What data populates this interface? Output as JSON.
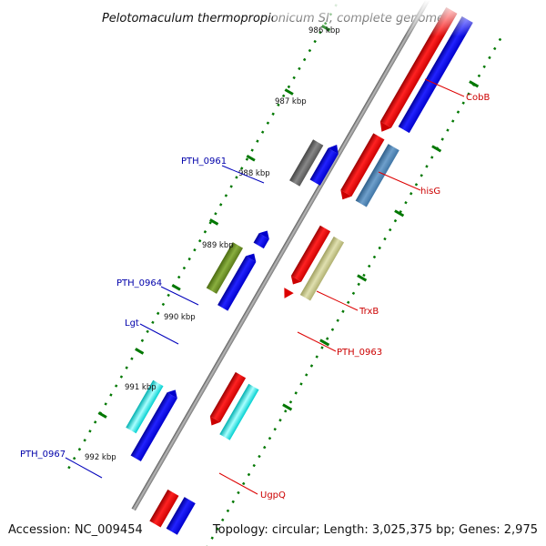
{
  "title": "Pelotomaculum thermopropionicum SI, complete genome",
  "footer": {
    "accession": "Accession: NC_009454",
    "summary": "Topology: circular; Length: 3,025,375 bp; Genes: 2,975"
  },
  "ticks": [
    "986 kbp",
    "987 kbp",
    "988 kbp",
    "989 kbp",
    "990 kbp",
    "991 kbp",
    "992 kbp"
  ],
  "genes": [
    {
      "label": "CobB",
      "color": "#cc0000"
    },
    {
      "label": "hisG",
      "color": "#cc0000"
    },
    {
      "label": "PTH_0961",
      "color": "#0000aa"
    },
    {
      "label": "TrxB",
      "color": "#cc0000"
    },
    {
      "label": "PTH_0964",
      "color": "#0000aa"
    },
    {
      "label": "Lgt",
      "color": "#0000aa"
    },
    {
      "label": "PTH_0963",
      "color": "#cc0000"
    },
    {
      "label": "PTH_0967",
      "color": "#0000aa"
    },
    {
      "label": "UgpQ",
      "color": "#cc0000"
    }
  ],
  "colors": {
    "forward_strand": "#ff0000",
    "reverse_strand": "#0000ff",
    "backbone": "#888888",
    "tick_dots": "#007700",
    "feature_grey": "#666666",
    "feature_steelblue": "#4682b4",
    "feature_khaki": "#c8c88c",
    "feature_olive": "#6b8e23",
    "feature_cyan": "#00ffff"
  }
}
